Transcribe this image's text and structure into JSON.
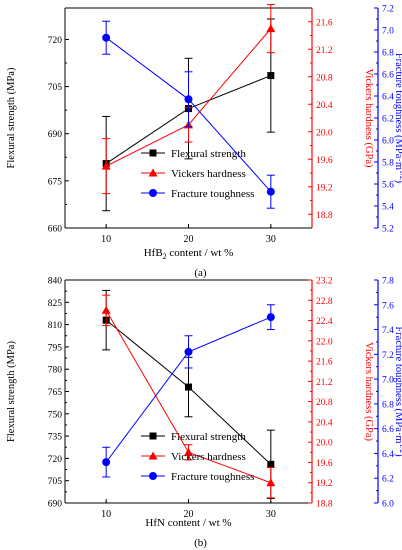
{
  "chart_data": [
    {
      "type": "line",
      "panel_label": "(a)",
      "x": [
        10,
        20,
        30
      ],
      "xlim": [
        5,
        35
      ],
      "xticks": [
        "10",
        "20",
        "30"
      ],
      "xlabel": "HfB",
      "xlabel_sub": "2",
      "xlabel_tail": " content / wt %",
      "axes": {
        "left": {
          "label": "Flexural strength (MPa)",
          "color": "#000000",
          "lim": [
            660,
            730
          ],
          "ticks": [
            "660",
            "675",
            "690",
            "705",
            "720"
          ]
        },
        "mid": {
          "label": "Vickers hardness (GPa)",
          "color": "#ff0000",
          "lim": [
            18.6,
            21.8
          ],
          "ticks": [
            "18.8",
            "19.2",
            "19.6",
            "20.0",
            "20.4",
            "20.8",
            "21.2",
            "21.6"
          ]
        },
        "right": {
          "label": "Fracture toughness (MPa·m",
          "label_sup": "1/2",
          "label_tail": ")",
          "color": "#0000ff",
          "lim": [
            5.2,
            7.2
          ],
          "ticks": [
            "5.2",
            "5.4",
            "5.6",
            "5.8",
            "6.0",
            "6.2",
            "6.4",
            "6.6",
            "6.8",
            "7.0",
            "7.2"
          ]
        }
      },
      "series": [
        {
          "name": "Flexural strength",
          "axis": "left",
          "color": "#000000",
          "marker": "square",
          "values": [
            680.5,
            698.0,
            708.5
          ],
          "errors": [
            15,
            16,
            18
          ]
        },
        {
          "name": "Vickers hardness",
          "axis": "mid",
          "color": "#ff0000",
          "marker": "triangle",
          "values": [
            19.5,
            20.1,
            21.5
          ],
          "errors": [
            0.4,
            0.25,
            0.35
          ]
        },
        {
          "name": "Fracture toughness",
          "axis": "right",
          "color": "#0000ff",
          "marker": "circle",
          "values": [
            6.93,
            6.37,
            5.53
          ],
          "errors": [
            0.15,
            0.25,
            0.15
          ]
        }
      ]
    },
    {
      "type": "line",
      "panel_label": "(b)",
      "x": [
        10,
        20,
        30
      ],
      "xlim": [
        5,
        35
      ],
      "xticks": [
        "10",
        "20",
        "30"
      ],
      "xlabel": "HfN content / wt %",
      "xlabel_sub": "",
      "xlabel_tail": "",
      "axes": {
        "left": {
          "label": "Flexural strength (MPa)",
          "color": "#000000",
          "lim": [
            690,
            840
          ],
          "ticks": [
            "690",
            "705",
            "720",
            "735",
            "750",
            "765",
            "780",
            "795",
            "810",
            "825",
            "840"
          ]
        },
        "mid": {
          "label": "Vickers hardness (GPa)",
          "color": "#ff0000",
          "lim": [
            18.8,
            23.2
          ],
          "ticks": [
            "18.8",
            "19.2",
            "19.6",
            "20.0",
            "20.4",
            "20.8",
            "21.2",
            "21.6",
            "22.0",
            "22.4",
            "22.8",
            "23.2"
          ]
        },
        "right": {
          "label": "Fracture toughness (MPa·m",
          "label_sup": "1/2",
          "label_tail": ")",
          "color": "#0000ff",
          "lim": [
            6.0,
            7.8
          ],
          "ticks": [
            "6.0",
            "6.2",
            "6.4",
            "6.6",
            "6.8",
            "7.0",
            "7.2",
            "7.4",
            "7.6",
            "7.8"
          ]
        }
      },
      "series": [
        {
          "name": "Flexural strength",
          "axis": "left",
          "color": "#000000",
          "marker": "square",
          "values": [
            813,
            768,
            716
          ],
          "errors": [
            20,
            20,
            23
          ]
        },
        {
          "name": "Vickers hardness",
          "axis": "mid",
          "color": "#ff0000",
          "marker": "triangle",
          "values": [
            22.6,
            19.8,
            19.2
          ],
          "errors": [
            0.3,
            0.15,
            0.3
          ]
        },
        {
          "name": "Fracture toughness",
          "axis": "right",
          "color": "#0000ff",
          "marker": "circle",
          "values": [
            6.33,
            7.22,
            7.5
          ],
          "errors": [
            0.12,
            0.13,
            0.1
          ]
        }
      ]
    }
  ]
}
